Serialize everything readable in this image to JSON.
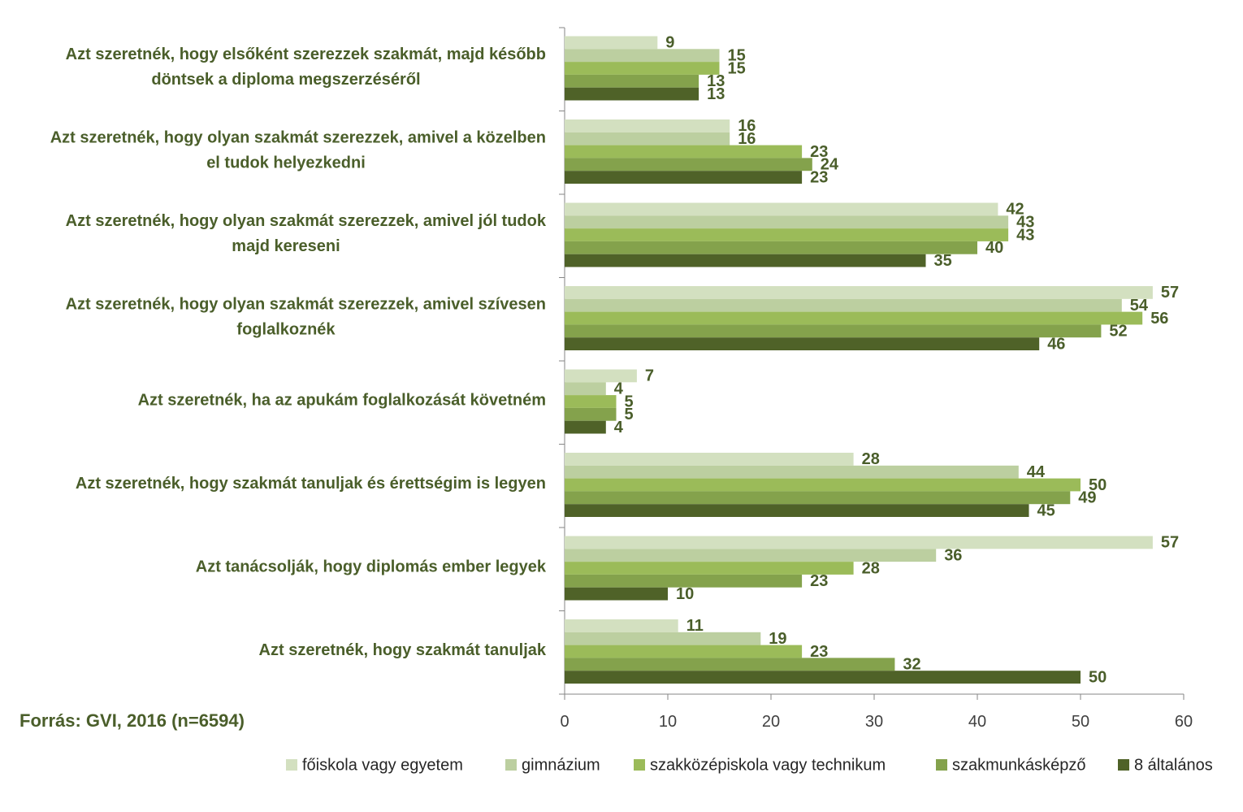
{
  "source_note": "Forrás: GVI, 2016 (n=6594)",
  "chart_data": {
    "type": "bar",
    "orientation": "horizontal",
    "categories": [
      [
        "Azt szeretnék, hogy elsőként szerezzek szakmát, majd később",
        "döntsek a diploma megszerzéséről"
      ],
      [
        "Azt szeretnék, hogy olyan szakmát szerezzek, amivel a közelben",
        "el tudok helyezkedni"
      ],
      [
        "Azt szeretnék, hogy olyan szakmát szerezzek, amivel jól tudok",
        "majd kereseni"
      ],
      [
        "Azt szeretnék, hogy olyan szakmát szerezzek, amivel szívesen",
        "foglalkoznék"
      ],
      [
        "Azt szeretnék, ha az apukám foglalkozását követném"
      ],
      [
        "Azt szeretnék, hogy szakmát tanuljak és érettségim is legyen"
      ],
      [
        "Azt tanácsolják, hogy diplomás ember legyek"
      ],
      [
        "Azt szeretnék, hogy szakmát tanuljak"
      ]
    ],
    "series": [
      {
        "name": "főiskola vagy egyetem",
        "color": "#d3e0c0",
        "values": [
          9,
          16,
          42,
          57,
          7,
          28,
          57,
          11
        ]
      },
      {
        "name": "gimnázium",
        "color": "#bccfa0",
        "values": [
          15,
          16,
          43,
          54,
          4,
          44,
          36,
          19
        ]
      },
      {
        "name": "szakközépiskola vagy technikum",
        "color": "#9bbb59",
        "values": [
          15,
          23,
          43,
          56,
          5,
          50,
          28,
          23
        ]
      },
      {
        "name": "szakmunkásképző",
        "color": "#84a24c",
        "values": [
          13,
          24,
          40,
          52,
          5,
          49,
          23,
          32
        ]
      },
      {
        "name": "8 általános",
        "color": "#4f6228",
        "values": [
          13,
          23,
          35,
          46,
          4,
          45,
          10,
          50
        ]
      }
    ],
    "xlim": [
      0,
      60
    ],
    "xticks": [
      0,
      10,
      20,
      30,
      40,
      50,
      60
    ],
    "legend_position": "bottom",
    "label_color": "#4a5e2a",
    "grid": false
  }
}
